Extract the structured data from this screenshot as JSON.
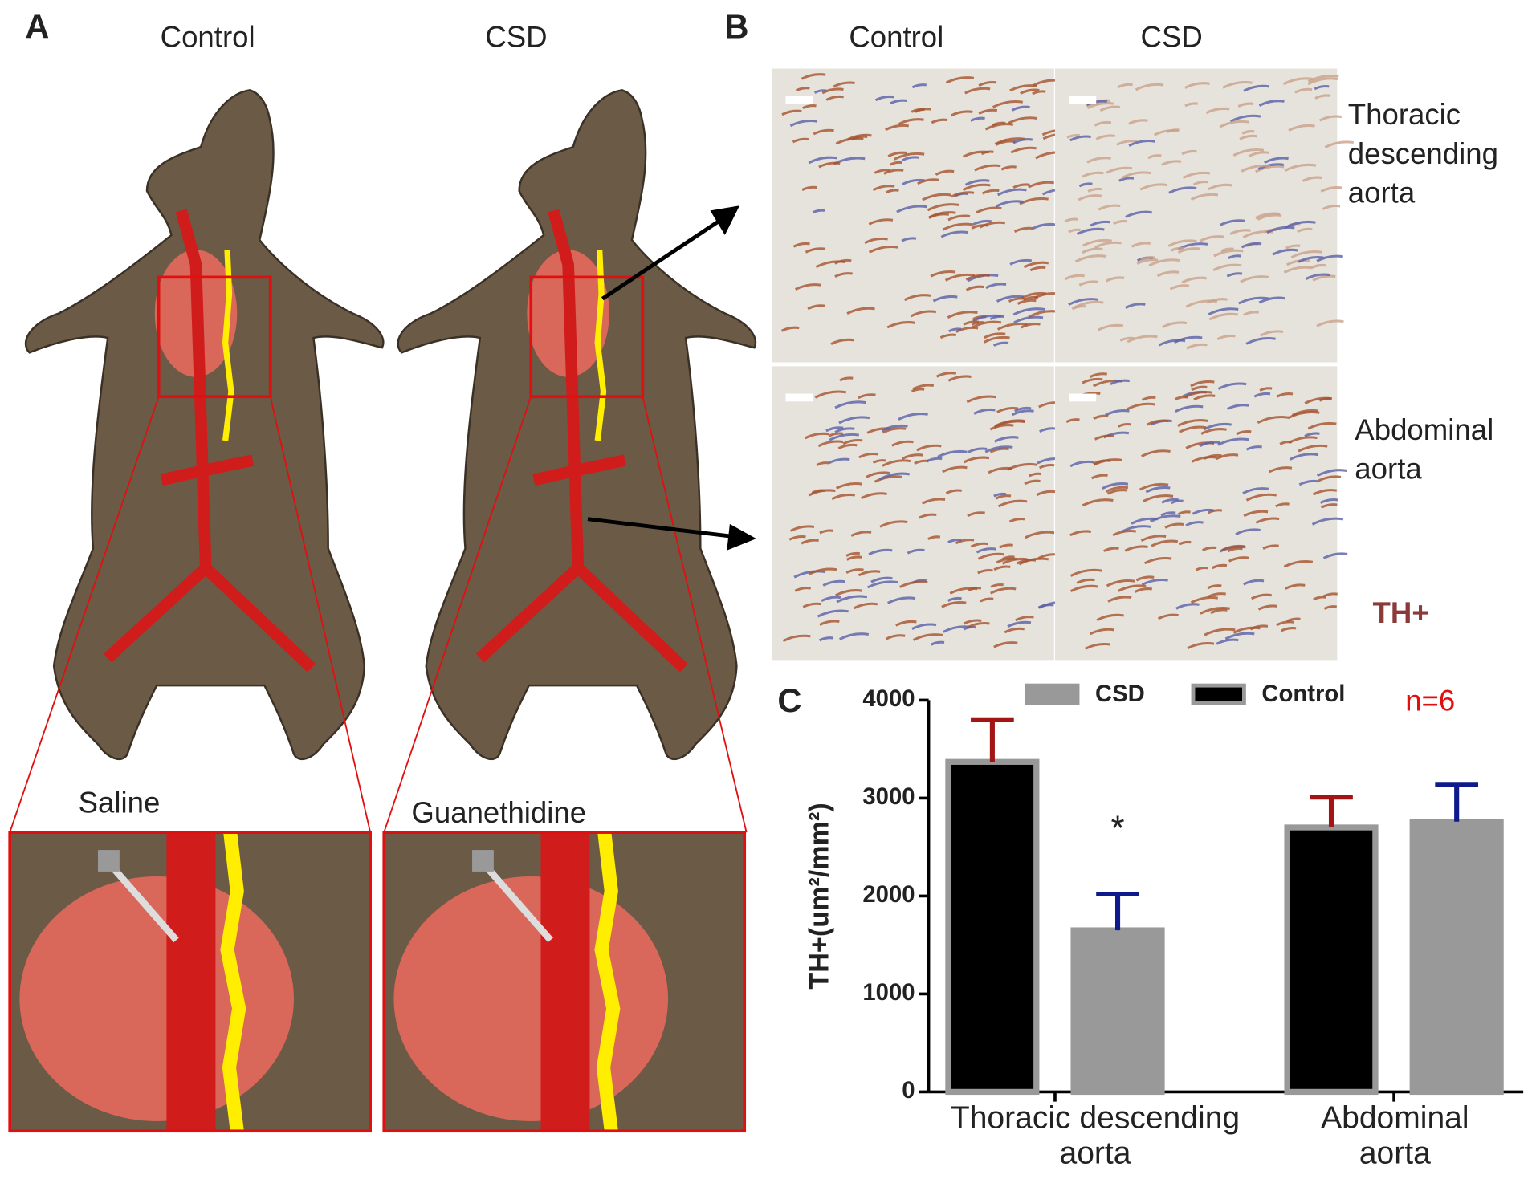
{
  "panels": {
    "a": {
      "label": "A",
      "left_title": "Control",
      "right_title": "CSD",
      "left_inset": "Saline",
      "right_inset": "Guanethidine"
    },
    "b": {
      "label": "B",
      "col1": "Control",
      "col2": "CSD",
      "row1": "Thoracic descending aorta",
      "row2": "Abdominal aorta",
      "stain": "TH+"
    },
    "c": {
      "label": "C"
    }
  },
  "chart_data": {
    "type": "bar",
    "ylabel": "TH+(um²/mm²)",
    "categories": [
      "Thoracic descending aorta",
      "Abdominal aorta"
    ],
    "series": [
      {
        "name": "Control",
        "color": "#000000",
        "edge": "#999999",
        "error_color": "#a31515",
        "values": [
          3370,
          2700
        ],
        "errors": [
          430,
          310
        ]
      },
      {
        "name": "CSD",
        "color": "#999999",
        "edge": "#999999",
        "error_color": "#0d1a8c",
        "values": [
          1650,
          2760
        ],
        "errors": [
          370,
          380
        ]
      }
    ],
    "ylim": [
      0,
      4000
    ],
    "yticks": [
      0,
      1000,
      2000,
      3000,
      4000
    ],
    "annotations": [
      {
        "text": "*",
        "category": 0,
        "series": 1
      },
      {
        "text": "n=6",
        "color": "#e01010"
      }
    ]
  }
}
